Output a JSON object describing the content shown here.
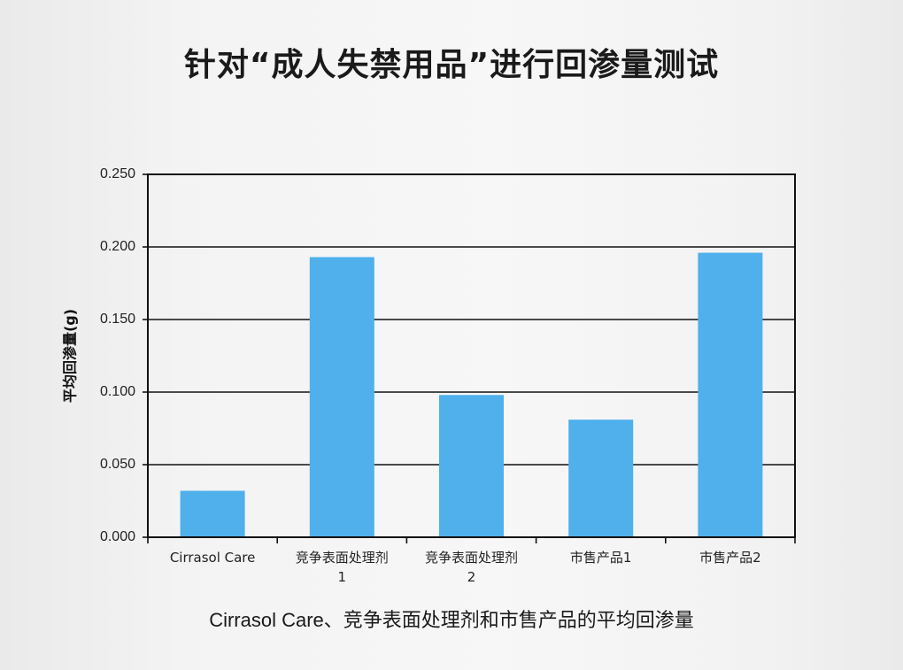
{
  "title": "针对“成人失禁用品”进行回渗量测试",
  "caption": "Cirrasol Care、竞争表面处理剂和市售产品的平均回渗量",
  "chart_data": {
    "type": "bar",
    "categories": [
      "Cirrasol Care",
      "竞争表面处理剂1",
      "竞争表面处理剂2",
      "市售产品1",
      "市售产品2"
    ],
    "category_lines": [
      [
        "Cirrasol Care"
      ],
      [
        "竞争表面处理剂",
        "1"
      ],
      [
        "竞争表面处理剂",
        "2"
      ],
      [
        "市售产品1"
      ],
      [
        "市售产品2"
      ]
    ],
    "values": [
      0.032,
      0.193,
      0.098,
      0.081,
      0.196
    ],
    "yticks": [
      "0.000",
      "0.050",
      "0.100",
      "0.150",
      "0.200",
      "0.250"
    ],
    "ylim": [
      0,
      0.25
    ],
    "ylabel": "平均回渗量(g)",
    "xlabel": "",
    "grid": true,
    "bar_color": "#4fb0ec"
  }
}
